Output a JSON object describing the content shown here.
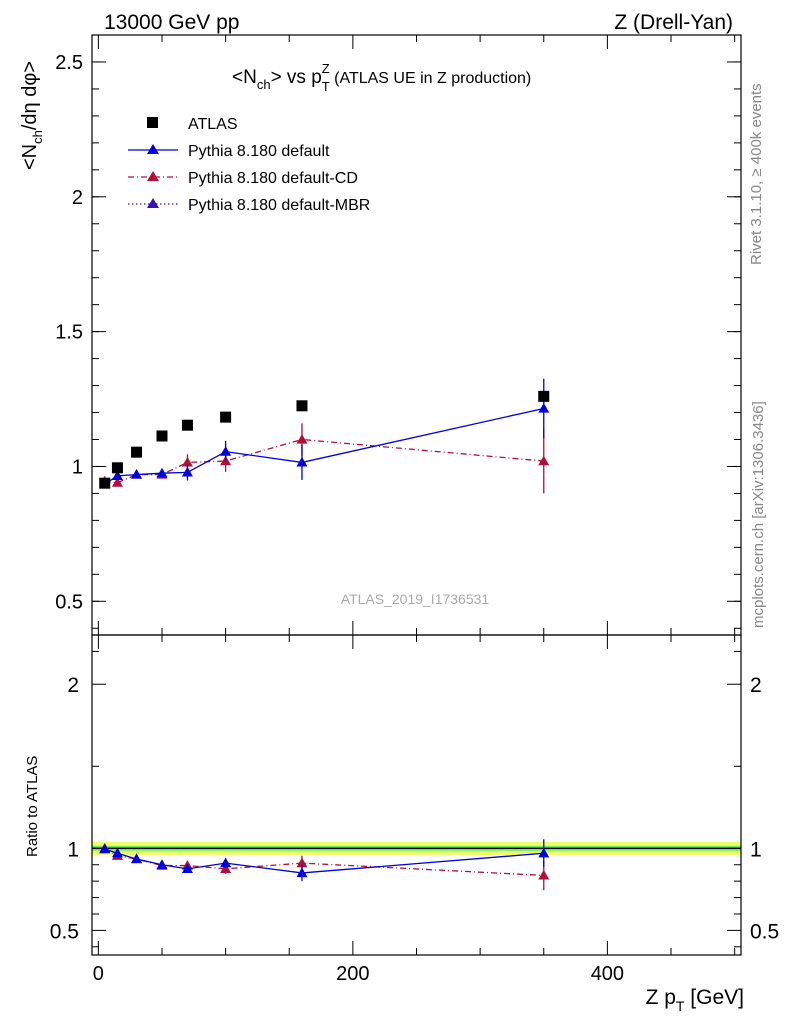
{
  "header": {
    "left": "13000 GeV pp",
    "right": "Z (Drell-Yan)"
  },
  "plot_title": {
    "main": "<N",
    "sub1": "ch",
    "mid": "> vs p",
    "sub2": "T",
    "sup": "Z",
    "rest": " (ATLAS UE in Z production)"
  },
  "ylabel_top": {
    "a": "<N",
    "sub": "ch",
    "b": "/dη dφ>"
  },
  "ylabel_bottom": "Ratio to ATLAS",
  "xlabel": {
    "a": "Z p",
    "sub": "T",
    "b": " [GeV]"
  },
  "side_texts": {
    "rivet": "Rivet 3.1.10, ≥ 400k events",
    "mcplots": "mcplots.cern.ch [arXiv:1306.3436]"
  },
  "watermark": "ATLAS_2019_I1736531",
  "colors": {
    "data": "#000000",
    "default": "#0000dd",
    "cd": "#b0103a",
    "mbr": "#3a10b0",
    "band_inner": "#66ee66",
    "band_outer": "#eeff66"
  },
  "chart_data": [
    {
      "type": "scatter",
      "panel": "main",
      "xlim": [
        -5,
        505
      ],
      "ylim": [
        0.375,
        2.6
      ],
      "yticks": [
        0.5,
        1,
        1.5,
        2,
        2.5
      ],
      "ytick_labels": [
        "0.5",
        "1",
        "1.5",
        "2",
        "2.5"
      ],
      "xticks": [
        0,
        200,
        400
      ],
      "legend_position": "top-left",
      "series": [
        {
          "name": "ATLAS",
          "marker": "square",
          "x": [
            5,
            15,
            30,
            50,
            70,
            100,
            160,
            350
          ],
          "y": [
            0.938,
            0.995,
            1.053,
            1.113,
            1.153,
            1.183,
            1.225,
            1.26
          ],
          "yerr": [
            0.005,
            0.005,
            0.005,
            0.005,
            0.005,
            0.005,
            0.005,
            0.01
          ]
        },
        {
          "name": "Pythia 8.180 default",
          "marker": "triangle",
          "line": "solid",
          "x": [
            5,
            15,
            30,
            50,
            70,
            100,
            160,
            350
          ],
          "y": [
            0.935,
            0.965,
            0.97,
            0.975,
            0.978,
            1.055,
            1.015,
            1.215
          ],
          "yerr": [
            0.01,
            0.01,
            0.01,
            0.015,
            0.03,
            0.04,
            0.065,
            0.11
          ]
        },
        {
          "name": "Pythia 8.180 default-CD",
          "marker": "triangle",
          "line": "dashdot",
          "x": [
            5,
            15,
            30,
            50,
            70,
            100,
            160,
            350
          ],
          "y": [
            0.945,
            0.94,
            0.97,
            0.97,
            1.015,
            1.02,
            1.1,
            1.02
          ],
          "yerr": [
            0.01,
            0.01,
            0.01,
            0.015,
            0.03,
            0.04,
            0.06,
            0.12
          ]
        },
        {
          "name": "Pythia 8.180 default-MBR",
          "marker": "triangle",
          "line": "dotted",
          "x": [],
          "y": []
        }
      ]
    },
    {
      "type": "scatter",
      "panel": "ratio",
      "xlim": [
        -5,
        505
      ],
      "ylim": [
        0.35,
        2.3
      ],
      "yticks": [
        0.5,
        1,
        2
      ],
      "ytick_labels": [
        "0.5",
        "1",
        "2"
      ],
      "xticks": [
        0,
        200,
        400
      ],
      "xtick_labels": [
        "0",
        "200",
        "400"
      ],
      "band": {
        "inner": [
          0.985,
          1.015
        ],
        "outer": [
          0.96,
          1.04
        ]
      },
      "series": [
        {
          "name": "Pythia 8.180 default",
          "x": [
            5,
            15,
            30,
            50,
            70,
            100,
            160,
            350
          ],
          "y": [
            0.995,
            0.97,
            0.935,
            0.9,
            0.875,
            0.91,
            0.85,
            0.97
          ],
          "yerr": [
            0.01,
            0.01,
            0.01,
            0.015,
            0.025,
            0.03,
            0.05,
            0.085
          ]
        },
        {
          "name": "Pythia 8.180 default-CD",
          "x": [
            5,
            15,
            30,
            50,
            70,
            100,
            160,
            350
          ],
          "y": [
            1.0,
            0.955,
            0.935,
            0.895,
            0.895,
            0.875,
            0.91,
            0.835
          ],
          "yerr": [
            0.01,
            0.01,
            0.01,
            0.015,
            0.025,
            0.03,
            0.045,
            0.09
          ]
        }
      ]
    }
  ]
}
